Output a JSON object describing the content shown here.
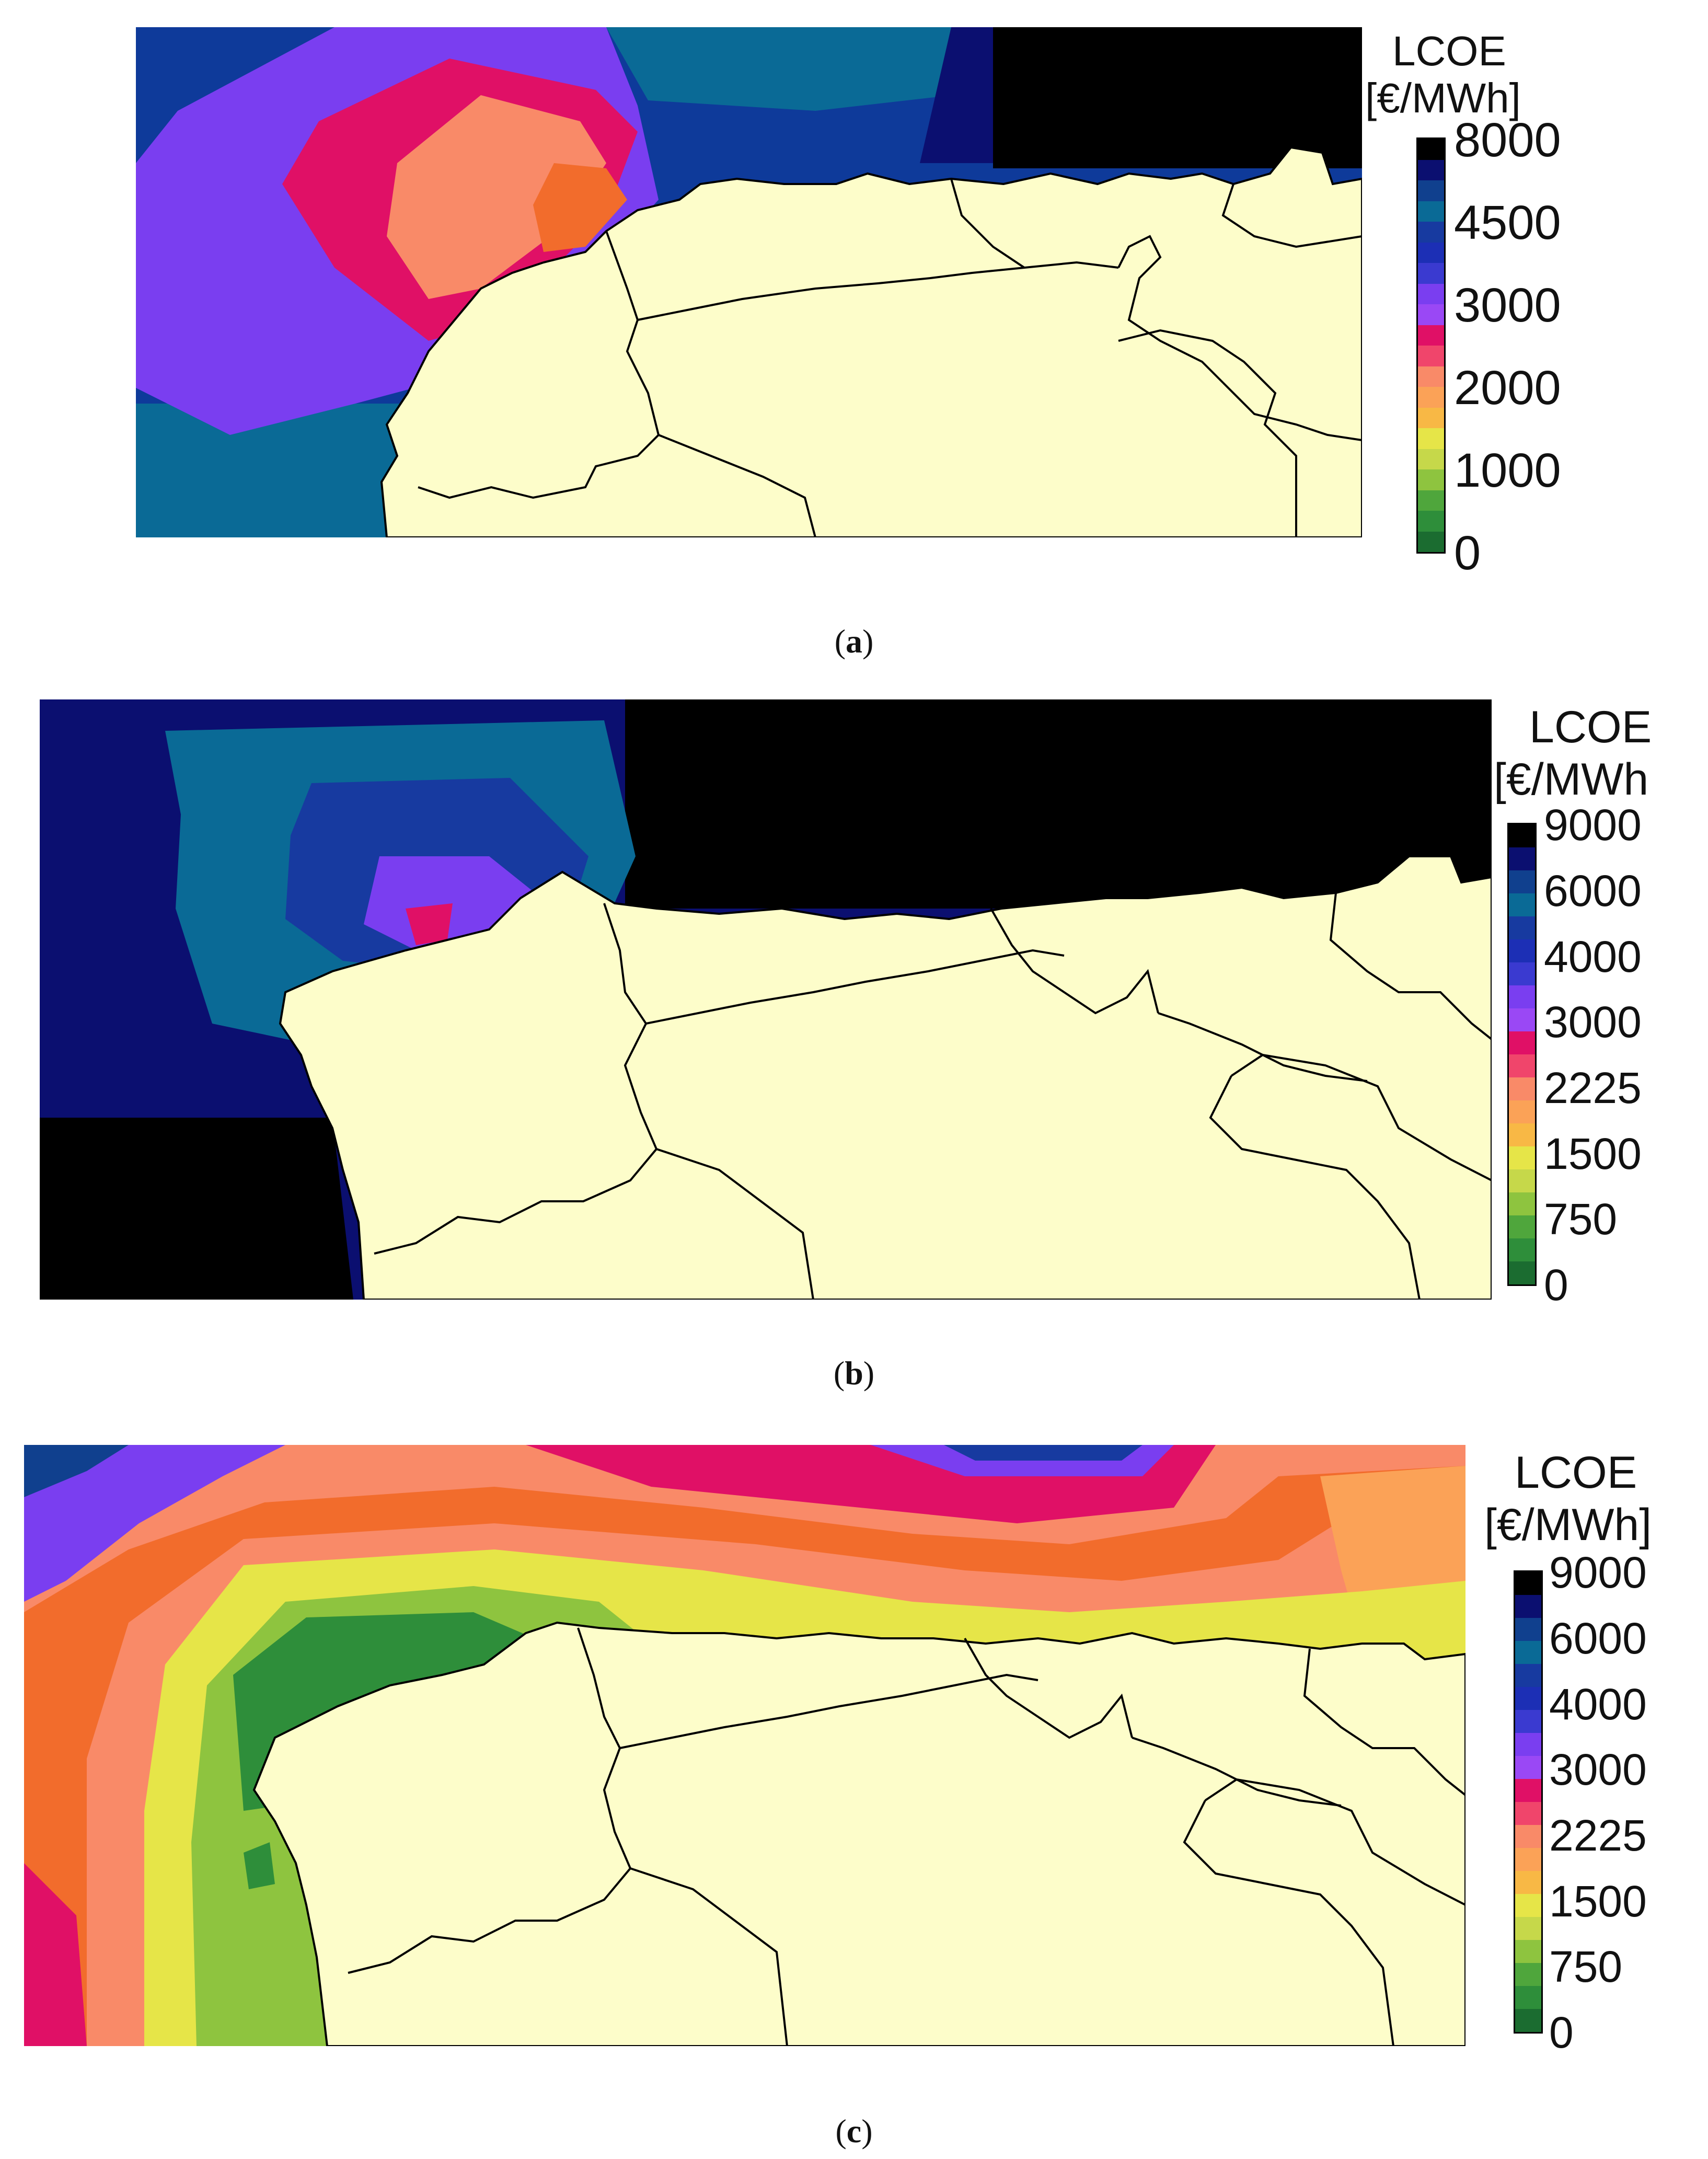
{
  "figure": {
    "panels": [
      {
        "id": "a",
        "caption_letter": "a",
        "legend": {
          "title_line1": "LCOE",
          "title_line2": "[€/MWh]",
          "ticks": [
            "8000",
            "4500",
            "3000",
            "2000",
            "1000",
            "0"
          ],
          "colors": [
            "#000000",
            "#0b0f70",
            "#10408e",
            "#0a6a96",
            "#173aa0",
            "#1c2fb5",
            "#3a3ad0",
            "#7a3ef0",
            "#9a48f5",
            "#e01066",
            "#f0456b",
            "#f98a68",
            "#fba257",
            "#f8b845",
            "#e6e548",
            "#c6d84a",
            "#8ec43f",
            "#4fa63c",
            "#2e8e3a",
            "#1b6c30"
          ]
        }
      },
      {
        "id": "b",
        "caption_letter": "b",
        "legend": {
          "title_line1": "LCOE",
          "title_line2": "[€/MWh",
          "ticks": [
            "9000",
            "6000",
            "4000",
            "3000",
            "2225",
            "1500",
            "750",
            "0"
          ],
          "colors": [
            "#000000",
            "#0b0f70",
            "#10408e",
            "#0a6a96",
            "#173aa0",
            "#1c2fb5",
            "#3a3ad0",
            "#7a3ef0",
            "#9a48f5",
            "#e01066",
            "#f0456b",
            "#f98a68",
            "#fba257",
            "#f8b845",
            "#e6e548",
            "#c6d84a",
            "#8ec43f",
            "#4fa63c",
            "#2e8e3a",
            "#1b6c30"
          ]
        }
      },
      {
        "id": "c",
        "caption_letter": "c",
        "legend": {
          "title_line1": "LCOE",
          "title_line2": "[€/MWh]",
          "ticks": [
            "9000",
            "6000",
            "4000",
            "3000",
            "2225",
            "1500",
            "750",
            "0"
          ],
          "colors": [
            "#000000",
            "#0b0f70",
            "#10408e",
            "#0a6a96",
            "#173aa0",
            "#1c2fb5",
            "#3a3ad0",
            "#7a3ef0",
            "#9a48f5",
            "#e01066",
            "#f0456b",
            "#f98a68",
            "#fba257",
            "#f8b845",
            "#e6e548",
            "#c6d84a",
            "#8ec43f",
            "#4fa63c",
            "#2e8e3a",
            "#1b6c30"
          ]
        }
      }
    ],
    "colors": {
      "land": "#fdfdca",
      "border": "#000000"
    }
  }
}
